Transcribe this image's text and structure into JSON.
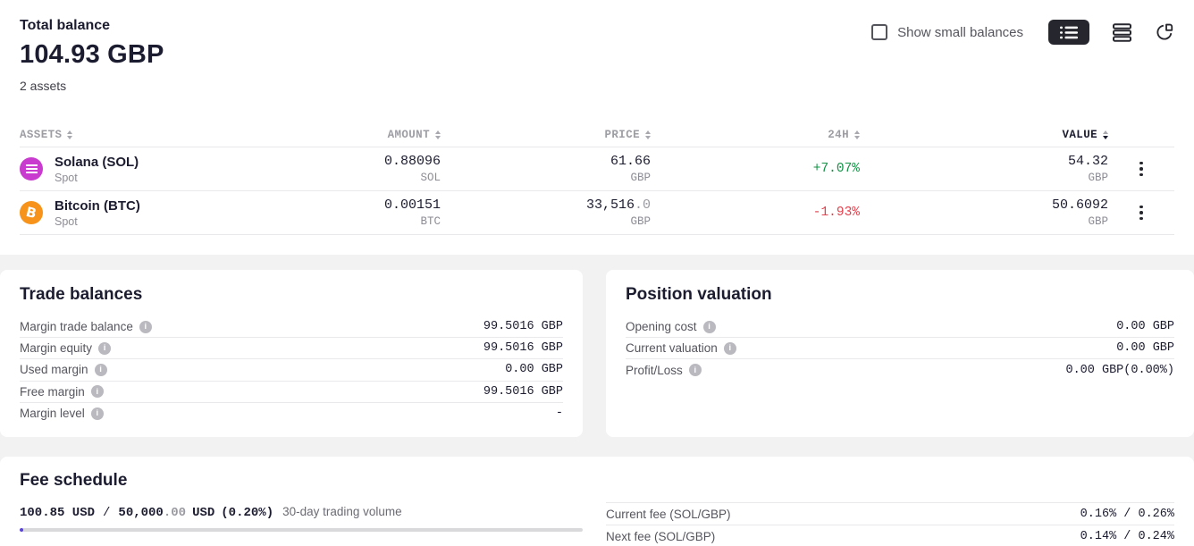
{
  "header": {
    "title": "Total balance",
    "balance": "104.93 GBP",
    "assets_count": "2 assets",
    "show_small_balances_label": "Show small balances",
    "view_icons": [
      "list-view-icon",
      "rows-view-icon",
      "pie-chart-icon"
    ],
    "active_view": "list-view-icon",
    "accent_dark": "#26262e"
  },
  "table": {
    "columns": [
      "ASSETS",
      "AMOUNT",
      "PRICE",
      "24H",
      "VALUE"
    ],
    "sorted_column": "VALUE",
    "sort_direction": "desc",
    "rows": [
      {
        "name": "Solana (SOL)",
        "type": "Spot",
        "icon": "solana-icon",
        "icon_color": "#c93bce",
        "amount": "0.88096",
        "amount_unit": "SOL",
        "price": "61.66",
        "price_minor": "",
        "price_unit": "GBP",
        "change": "+7.07%",
        "change_color": "#149245",
        "value": "54.32",
        "value_unit": "GBP"
      },
      {
        "name": "Bitcoin (BTC)",
        "type": "Spot",
        "icon": "bitcoin-icon",
        "icon_color": "#f7931a",
        "amount": "0.00151",
        "amount_unit": "BTC",
        "price": "33,516",
        "price_minor": ".0",
        "price_unit": "GBP",
        "change": "-1.93%",
        "change_color": "#e2434e",
        "value": "50.6092",
        "value_unit": "GBP"
      }
    ]
  },
  "trade_balances": {
    "title": "Trade balances",
    "rows": [
      {
        "label": "Margin trade balance",
        "value": "99.5016 GBP"
      },
      {
        "label": "Margin equity",
        "value": "99.5016 GBP"
      },
      {
        "label": "Used margin",
        "value": "0.00 GBP"
      },
      {
        "label": "Free margin",
        "value": "99.5016 GBP"
      },
      {
        "label": "Margin level",
        "value": "-"
      }
    ]
  },
  "position_valuation": {
    "title": "Position valuation",
    "rows": [
      {
        "label": "Opening cost",
        "value": "0.00 GBP"
      },
      {
        "label": "Current valuation",
        "value": "0.00 GBP"
      },
      {
        "label": "Profit/Loss",
        "value": "0.00 GBP(0.00%)"
      }
    ]
  },
  "fee_schedule": {
    "title": "Fee schedule",
    "volume": {
      "current": "100.85 USD",
      "sep": "/",
      "max_major": "50,000",
      "max_minor": ".00",
      "max_unit": "USD",
      "pct": "(0.20%)",
      "label": "30-day trading volume"
    },
    "progress_percent": 0.6,
    "progress_color": "#5741d9",
    "rows": [
      {
        "label": "Current fee (SOL/GBP)",
        "value": "0.16% / 0.26%"
      },
      {
        "label": "Next fee (SOL/GBP)",
        "value": "0.14% / 0.24%"
      }
    ]
  }
}
